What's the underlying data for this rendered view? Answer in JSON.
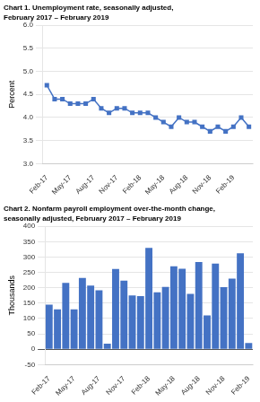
{
  "chart_data": [
    {
      "type": "line",
      "title": "Chart 1. Unemployment rate, seasonally adjusted,",
      "subtitle": "February 2017 – February 2019",
      "ylabel": "Percent",
      "categories": [
        "Feb-17",
        null,
        null,
        "May-17",
        null,
        null,
        "Aug-17",
        null,
        null,
        "Nov-17",
        null,
        null,
        "Feb-18",
        null,
        null,
        "May-18",
        null,
        null,
        "Aug-18",
        null,
        null,
        "Nov-18",
        null,
        null,
        "Feb-19",
        null,
        null
      ],
      "values": [
        4.7,
        4.4,
        4.4,
        4.3,
        4.3,
        4.3,
        4.4,
        4.2,
        4.1,
        4.2,
        4.2,
        4.1,
        4.1,
        4.1,
        4.0,
        3.9,
        3.8,
        4.0,
        3.9,
        3.9,
        3.8,
        3.7,
        3.8,
        3.7,
        3.8,
        4.0,
        3.8
      ],
      "color": "#4472C4",
      "marker": "square",
      "ylim": [
        3.0,
        6.0
      ],
      "yticks": [
        {
          "value": 3.0,
          "label": "3.0"
        },
        3.5,
        {
          "value": 4.0,
          "label": "4.0"
        },
        4.5,
        {
          "value": 5.0,
          "label": "5.0"
        },
        5.5,
        {
          "value": 6.0,
          "label": "6.0"
        }
      ],
      "grid": true
    },
    {
      "type": "bar",
      "title": "Chart 2. Nonfarm payroll employment over-the-month change,",
      "subtitle": "seasonally adjusted, February 2017 – February 2019",
      "ylabel": "Thousands",
      "categories": [
        "Feb-17",
        null,
        null,
        "May-17",
        null,
        null,
        "Aug-17",
        null,
        null,
        "Nov-17",
        null,
        null,
        "Feb-18",
        null,
        null,
        "May-18",
        null,
        null,
        "Aug-18",
        null,
        null,
        "Nov-18",
        null,
        null,
        "Feb-19"
      ],
      "values": [
        145,
        130,
        216,
        130,
        232,
        207,
        192,
        18,
        261,
        223,
        175,
        173,
        330,
        185,
        203,
        270,
        262,
        180,
        284,
        110,
        279,
        202,
        230,
        312,
        20
      ],
      "color": "#4472C4",
      "ylim": [
        -50,
        400
      ],
      "yticks": [
        -50,
        0,
        50,
        100,
        150,
        200,
        250,
        300,
        350,
        400
      ],
      "grid": true
    }
  ]
}
